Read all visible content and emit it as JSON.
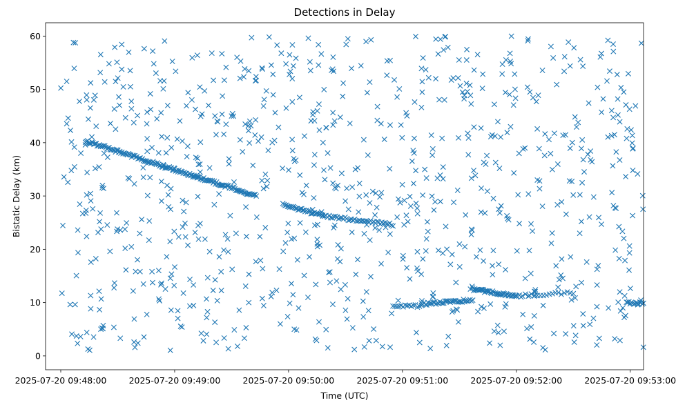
{
  "chart_data": {
    "type": "scatter",
    "title": "Detections in Delay",
    "xlabel": "Time (UTC)",
    "ylabel": "Bistatic Delay (km)",
    "marker": "x",
    "color": "#1f77b4",
    "grid": false,
    "legend": "none",
    "xlim": [
      "2025-07-20 09:47:52",
      "2025-07-20 09:53:07"
    ],
    "ylim": [
      -2.6,
      62.5
    ],
    "x_ticks": [
      "2025-07-20 09:48:00",
      "2025-07-20 09:49:00",
      "2025-07-20 09:50:00",
      "2025-07-20 09:51:00",
      "2025-07-20 09:52:00",
      "2025-07-20 09:53:00"
    ],
    "y_ticks": [
      0,
      10,
      20,
      30,
      40,
      50,
      60
    ],
    "tracks": [
      {
        "x_start": "2025-07-20 09:48:13",
        "x_end": "2025-07-20 09:49:43",
        "y_start": 40.3,
        "y_end": 30.0,
        "count": 160
      },
      {
        "x_start": "2025-07-20 09:49:57",
        "x_end": "2025-07-20 09:50:18",
        "y_start": 28.4,
        "y_end": 26.3,
        "count": 35
      },
      {
        "x_start": "2025-07-20 09:50:18",
        "x_end": "2025-07-20 09:50:55",
        "y_start": 26.3,
        "y_end": 24.6,
        "count": 45
      },
      {
        "x_start": "2025-07-20 09:50:55",
        "x_end": "2025-07-20 09:51:10",
        "y_start": 9.3,
        "y_end": 9.4,
        "count": 15
      },
      {
        "x_start": "2025-07-20 09:51:10",
        "x_end": "2025-07-20 09:51:37",
        "y_start": 9.7,
        "y_end": 10.5,
        "count": 40
      },
      {
        "x_start": "2025-07-20 09:51:37",
        "x_end": "2025-07-20 09:52:00",
        "y_start": 12.5,
        "y_end": 11.2,
        "count": 45
      },
      {
        "x_start": "2025-07-20 09:52:00",
        "x_end": "2025-07-20 09:52:30",
        "y_start": 11.3,
        "y_end": 11.8,
        "count": 20
      },
      {
        "x_start": "2025-07-20 09:52:58",
        "x_end": "2025-07-20 09:53:07",
        "y_start": 10.0,
        "y_end": 9.8,
        "count": 15
      }
    ],
    "clutter": {
      "description": "uniformly scattered false detections across full time span",
      "x_range": [
        "2025-07-20 09:48:00",
        "2025-07-20 09:53:07"
      ],
      "y_range": [
        1,
        60
      ],
      "approx_count": 900
    }
  }
}
